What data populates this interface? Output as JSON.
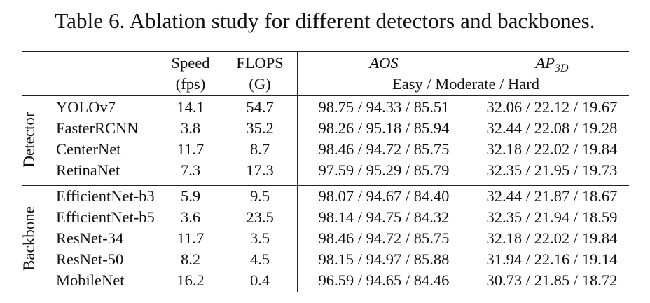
{
  "caption": "Table 6. Ablation study for different detectors and backbones.",
  "headers": {
    "speed": "Speed",
    "speed_unit": "(fps)",
    "flops": "FLOPS",
    "flops_unit": "(G)",
    "aos": "AOS",
    "ap_main": "AP",
    "ap_sub": "3D",
    "difficulty": "Easy / Moderate / Hard"
  },
  "groups": {
    "detector": "Detector",
    "backbone": "Backbone"
  },
  "detector_rows": [
    {
      "name": "YOLOv7",
      "speed": "14.1",
      "flops": "54.7",
      "aos": "98.75 / 94.33 / 85.51",
      "ap3d": "32.06 / 22.12 / 19.67"
    },
    {
      "name": "FasterRCNN",
      "speed": "3.8",
      "flops": "35.2",
      "aos": "98.26 / 95.18 / 85.94",
      "ap3d": "32.44 / 22.08 / 19.28"
    },
    {
      "name": "CenterNet",
      "speed": "11.7",
      "flops": "8.7",
      "aos": "98.46 / 94.72 / 85.75",
      "ap3d": "32.18 / 22.02 / 19.84"
    },
    {
      "name": "RetinaNet",
      "speed": "7.3",
      "flops": "17.3",
      "aos": "97.59 / 95.29 / 85.79",
      "ap3d": "32.35 / 21.95 / 19.73"
    }
  ],
  "backbone_rows": [
    {
      "name": "EfficientNet-b3",
      "speed": "5.9",
      "flops": "9.5",
      "aos": "98.07 / 94.67 / 84.40",
      "ap3d": "32.44 / 21.87 / 18.67"
    },
    {
      "name": "EfficientNet-b5",
      "speed": "3.6",
      "flops": "23.5",
      "aos": "98.14 / 94.75 / 84.32",
      "ap3d": "32.35 / 21.94 / 18.59"
    },
    {
      "name": "ResNet-34",
      "speed": "11.7",
      "flops": "3.5",
      "aos": "98.46 / 94.72 / 85.75",
      "ap3d": "32.18 / 22.02 / 19.84"
    },
    {
      "name": "ResNet-50",
      "speed": "8.2",
      "flops": "4.5",
      "aos": "98.15 / 94.97 / 85.88",
      "ap3d": "31.94 / 22.16 / 19.14"
    },
    {
      "name": "MobileNet",
      "speed": "16.2",
      "flops": "0.4",
      "aos": "96.59 / 94.65 / 84.46",
      "ap3d": "30.73 / 21.85 / 18.72"
    }
  ]
}
